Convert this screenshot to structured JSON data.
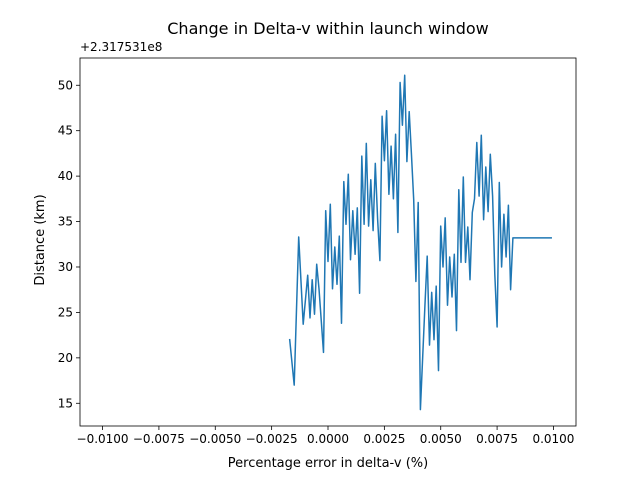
{
  "chart_data": {
    "type": "line",
    "title": "Change in Delta-v within launch window",
    "xlabel": "Percentage error in delta-v (%)",
    "ylabel": "Distance (km)",
    "y_offset_label": "+2.317531e8",
    "xlim": [
      -0.011,
      0.011
    ],
    "ylim": [
      12.5,
      53
    ],
    "x_ticks": [
      -0.01,
      -0.0075,
      -0.005,
      -0.0025,
      0.0,
      0.0025,
      0.005,
      0.0075,
      0.01
    ],
    "x_tick_labels": [
      "−0.0100",
      "−0.0075",
      "−0.0050",
      "−0.0025",
      "0.0000",
      "0.0025",
      "0.0050",
      "0.0075",
      "0.0100"
    ],
    "y_ticks": [
      15,
      20,
      25,
      30,
      35,
      40,
      45,
      50
    ],
    "y_tick_labels": [
      "15",
      "20",
      "25",
      "30",
      "35",
      "40",
      "45",
      "50"
    ],
    "grid": false,
    "series": [
      {
        "color": "#1f77b4",
        "x": [
          -0.0017,
          -0.0015,
          -0.0013,
          -0.0011,
          -0.0009,
          -0.0008,
          -0.0007,
          -0.0006,
          -0.0005,
          -0.0004,
          -0.0002,
          -0.0001,
          0.0,
          0.0001,
          0.0002,
          0.0003,
          0.0004,
          0.0005,
          0.0006,
          0.0007,
          0.0008,
          0.0009,
          0.001,
          0.0011,
          0.0012,
          0.0013,
          0.0014,
          0.0015,
          0.0016,
          0.0017,
          0.0018,
          0.0019,
          0.002,
          0.0021,
          0.0022,
          0.0023,
          0.0024,
          0.0025,
          0.0026,
          0.0027,
          0.0028,
          0.0029,
          0.003,
          0.0031,
          0.0032,
          0.0033,
          0.0034,
          0.0035,
          0.0036,
          0.0037,
          0.0038,
          0.0039,
          0.004,
          0.0041,
          0.0043,
          0.0044,
          0.0045,
          0.0046,
          0.0047,
          0.0048,
          0.0049,
          0.005,
          0.0051,
          0.0052,
          0.0053,
          0.0054,
          0.0055,
          0.0056,
          0.0057,
          0.0058,
          0.0059,
          0.006,
          0.0061,
          0.0062,
          0.0063,
          0.0064,
          0.0065,
          0.0066,
          0.0067,
          0.0068,
          0.0069,
          0.007,
          0.0071,
          0.0072,
          0.0073,
          0.0074,
          0.0075,
          0.0076,
          0.0077,
          0.0078,
          0.0079,
          0.008,
          0.0081,
          0.0082,
          0.0083,
          0.0084,
          0.0085,
          0.0086,
          0.0087,
          0.0088,
          0.0089,
          0.009,
          0.0091,
          0.0092,
          0.0093,
          0.0094,
          0.0095,
          0.0096,
          0.0097,
          0.0098,
          0.0099
        ],
        "y": [
          22.0,
          17.0,
          33.3,
          23.7,
          29.1,
          24.4,
          28.6,
          24.8,
          30.3,
          27.6,
          20.6,
          36.2,
          30.6,
          36.9,
          27.6,
          32.2,
          28.1,
          33.4,
          23.8,
          39.4,
          34.7,
          40.2,
          30.8,
          36.2,
          31.4,
          36.5,
          27.1,
          42.2,
          34.7,
          43.6,
          34.5,
          39.6,
          34.0,
          41.4,
          35.3,
          30.7,
          46.6,
          41.7,
          47.2,
          38.0,
          43.3,
          37.5,
          44.6,
          33.8,
          50.3,
          45.6,
          51.1,
          41.6,
          47.1,
          42.5,
          37.4,
          28.4,
          37.1,
          14.3,
          25.7,
          31.2,
          21.4,
          27.2,
          22.0,
          27.9,
          18.6,
          34.5,
          30.0,
          35.4,
          25.8,
          31.1,
          26.7,
          31.4,
          23.0,
          38.5,
          30.5,
          39.9,
          30.5,
          34.4,
          28.6,
          36.0,
          37.5,
          43.7,
          37.8,
          44.5,
          35.2,
          41.0,
          36.1,
          42.4,
          37.8,
          29.2,
          23.4,
          39.3,
          30.0,
          35.8,
          31.1,
          36.8,
          27.5,
          33.2,
          33.2,
          33.2,
          33.2,
          33.2,
          33.2,
          33.2,
          33.2,
          33.2,
          33.2,
          33.2,
          33.2,
          33.2,
          33.2,
          33.2,
          33.2,
          33.2,
          33.2
        ]
      }
    ]
  }
}
